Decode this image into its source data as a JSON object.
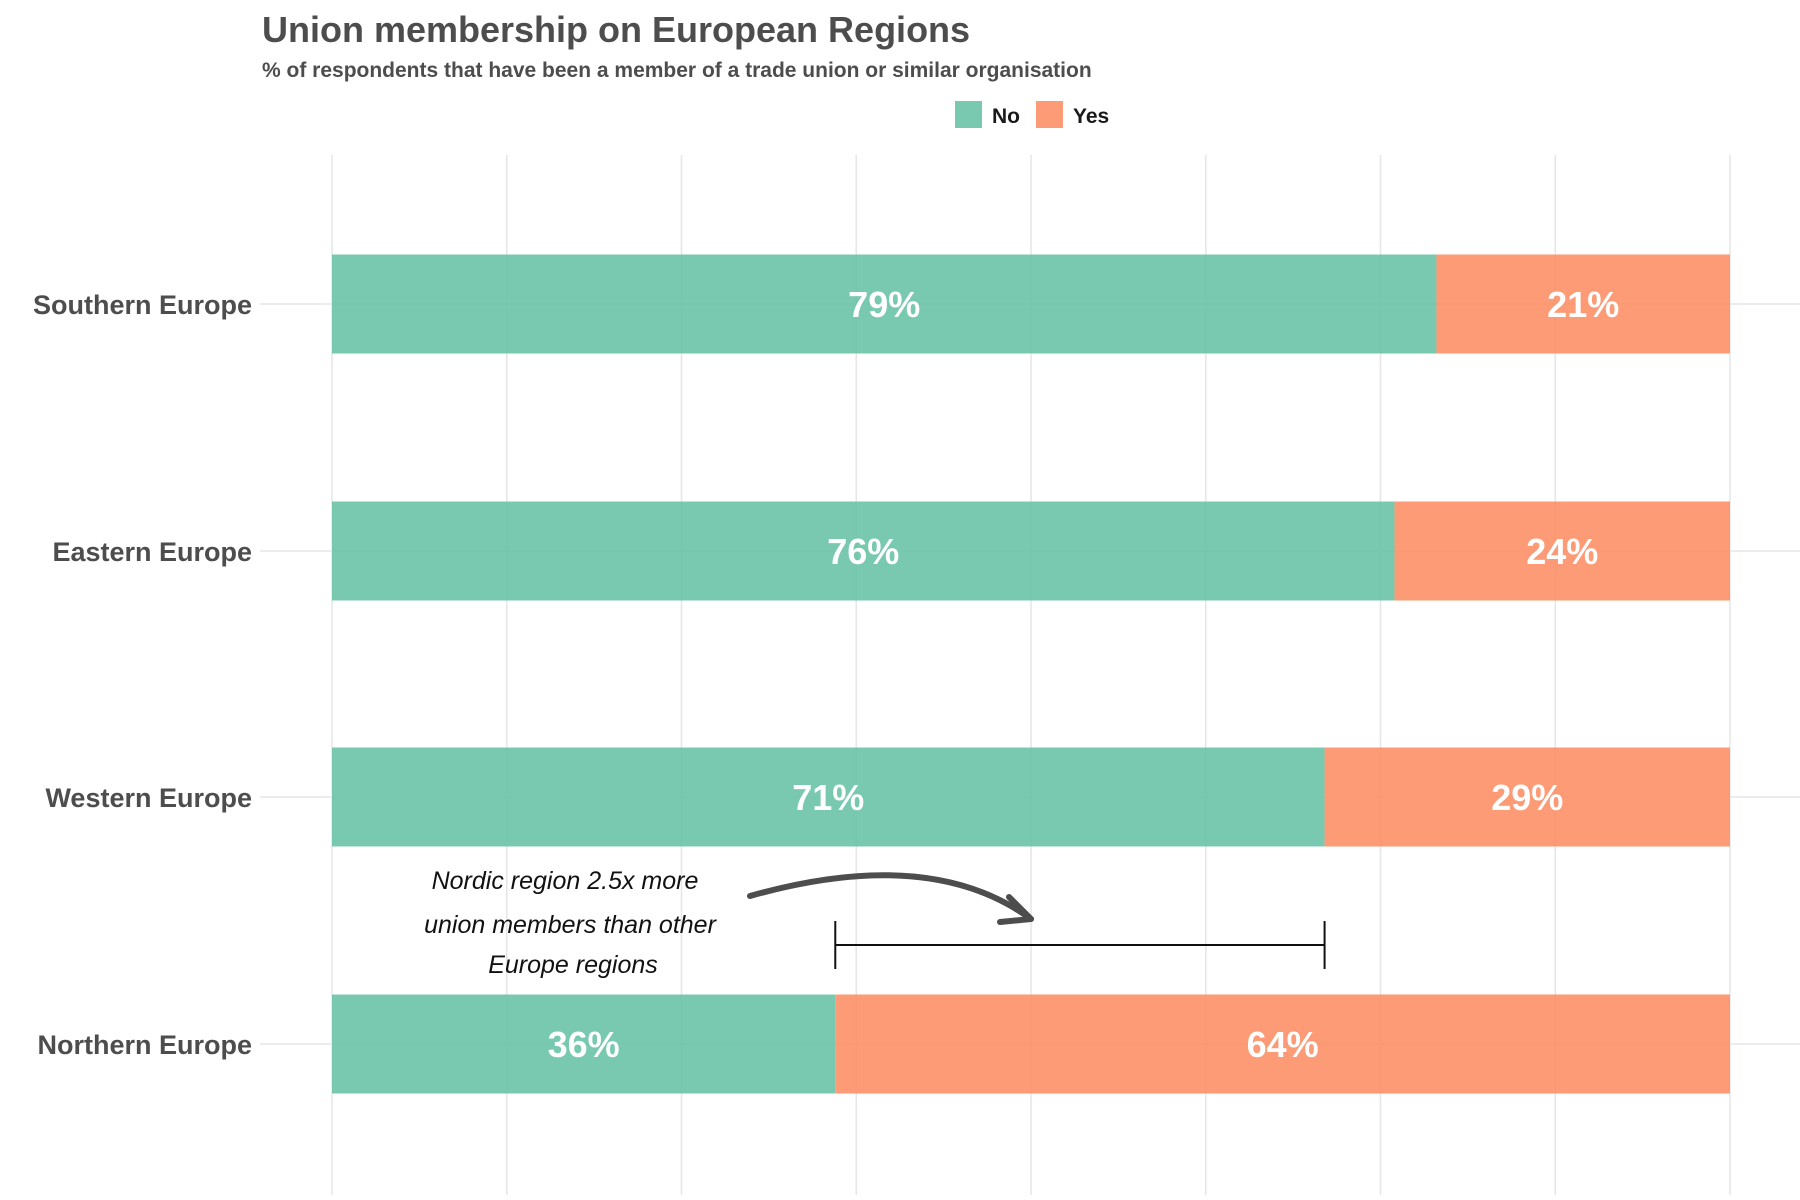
{
  "chart_data": {
    "type": "bar",
    "orientation": "horizontal",
    "stacked": true,
    "title": "Union membership on European Regions",
    "subtitle": "% of respondents that have been a member of a trade union or similar organisation",
    "categories": [
      "Southern Europe",
      "Eastern Europe",
      "Western Europe",
      "Northern Europe"
    ],
    "series": [
      {
        "name": "No",
        "color": "#66c2a5",
        "values": [
          79,
          76,
          71,
          36
        ]
      },
      {
        "name": "Yes",
        "color": "#fc8d62",
        "values": [
          21,
          24,
          29,
          64
        ]
      }
    ],
    "xlim": [
      0,
      100
    ],
    "grid": true,
    "legend_position": "top",
    "annotation": {
      "lines": [
        "Nordic region 2.5x more",
        "union members than other",
        "Europe regions"
      ],
      "bracket_from": 36,
      "bracket_to": 71
    }
  }
}
